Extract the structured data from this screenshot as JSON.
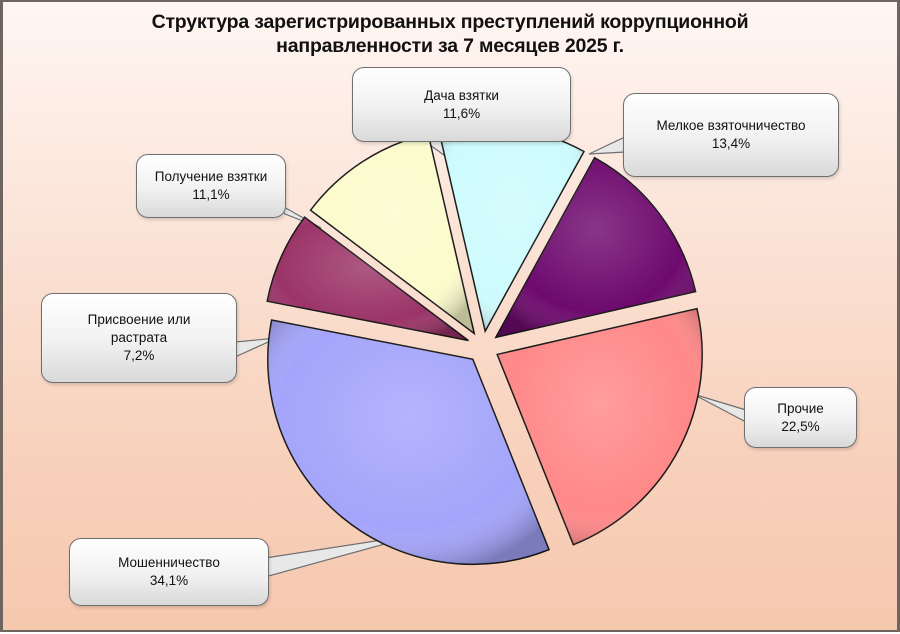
{
  "title": {
    "line1": "Структура зарегистрированных  преступлений коррупционной",
    "line2": "направленности за 7 месяцев 2025 г."
  },
  "chart_data": {
    "type": "pie",
    "title": "Структура зарегистрированных преступлений коррупционной направленности за 7 месяцев 2025 г.",
    "categories": [
      "Дача взятки",
      "Мелкое взяточничество",
      "Прочие",
      "Мошенничество",
      "Присвоение или растрата",
      "Получение взятки"
    ],
    "values": [
      11.6,
      13.4,
      22.5,
      34.1,
      7.2,
      11.1
    ],
    "unit": "%",
    "exploded": true,
    "legend": "none (data callouts)",
    "slices": [
      {
        "label": "Дача взятки",
        "value": 11.6,
        "value_text": "11,6%",
        "color": "#cdfbfd"
      },
      {
        "label": "Мелкое взяточничество",
        "value": 13.4,
        "value_text": "13,4%",
        "color": "#6e0a6e"
      },
      {
        "label": "Прочие",
        "value": 22.5,
        "value_text": "22,5%",
        "color": "#ff8888"
      },
      {
        "label": "Мошенничество",
        "value": 34.1,
        "value_text": "34,1%",
        "color": "#a4a4fb"
      },
      {
        "label": "Присвоение или растрата",
        "value": 7.2,
        "value_text": "7,2%",
        "color": "#9b3468"
      },
      {
        "label": "Получение взятки",
        "value": 11.1,
        "value_text": "11,1%",
        "color": "#fbfbcc"
      }
    ]
  },
  "callouts": {
    "dacha": {
      "line1": "Дача взятки",
      "line2": "11,6%"
    },
    "melkoe": {
      "line1": "Мелкое взяточничество",
      "line2": "13,4%"
    },
    "poluchenie": {
      "line1": "Получение взятки",
      "line2": "11,1%"
    },
    "prisvoenie": {
      "line1": "Присвоение или",
      "line2": "растрата",
      "line3": "7,2%"
    },
    "prochie": {
      "line1": "Прочие",
      "line2": "22,5%"
    },
    "moshennichestvo": {
      "line1": "Мошенничество",
      "line2": "34,1%"
    }
  }
}
